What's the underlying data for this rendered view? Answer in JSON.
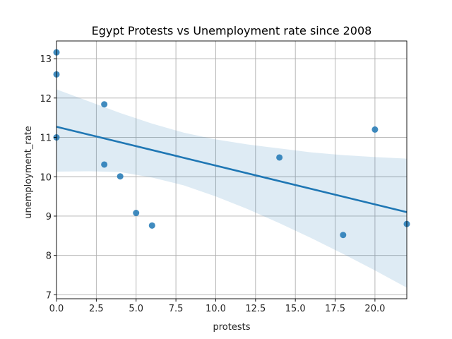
{
  "chart_data": {
    "type": "scatter",
    "title": "Egypt Protests vs Unemployment rate since 2008",
    "xlabel": "protests",
    "ylabel": "unemployment_rate",
    "xlim": [
      0,
      22
    ],
    "ylim": [
      6.9,
      13.45
    ],
    "x_ticks": [
      0.0,
      2.5,
      5.0,
      7.5,
      10.0,
      12.5,
      15.0,
      17.5,
      20.0
    ],
    "x_tick_labels": [
      "0.0",
      "2.5",
      "5.0",
      "7.5",
      "10.0",
      "12.5",
      "15.0",
      "17.5",
      "20.0"
    ],
    "y_ticks": [
      7,
      8,
      9,
      10,
      11,
      12,
      13
    ],
    "y_tick_labels": [
      "7",
      "8",
      "9",
      "10",
      "11",
      "12",
      "13"
    ],
    "grid": true,
    "series": [
      {
        "points": [
          {
            "x": 0,
            "y": 13.16
          },
          {
            "x": 0,
            "y": 12.6
          },
          {
            "x": 0,
            "y": 11.0
          },
          {
            "x": 3,
            "y": 11.84
          },
          {
            "x": 3,
            "y": 10.31
          },
          {
            "x": 4,
            "y": 10.01
          },
          {
            "x": 5,
            "y": 9.08
          },
          {
            "x": 6,
            "y": 8.76
          },
          {
            "x": 14,
            "y": 10.49
          },
          {
            "x": 18,
            "y": 8.52
          },
          {
            "x": 20,
            "y": 11.2
          },
          {
            "x": 22,
            "y": 8.8
          }
        ]
      }
    ],
    "regression": {
      "start": {
        "x": 0,
        "y": 11.27
      },
      "end": {
        "x": 22,
        "y": 9.1
      },
      "ci_upper": [
        {
          "x": 0,
          "y": 12.22
        },
        {
          "x": 2,
          "y": 11.92
        },
        {
          "x": 4,
          "y": 11.62
        },
        {
          "x": 6,
          "y": 11.35
        },
        {
          "x": 8,
          "y": 11.12
        },
        {
          "x": 10,
          "y": 10.95
        },
        {
          "x": 12,
          "y": 10.82
        },
        {
          "x": 14,
          "y": 10.72
        },
        {
          "x": 16,
          "y": 10.62
        },
        {
          "x": 18,
          "y": 10.55
        },
        {
          "x": 20,
          "y": 10.5
        },
        {
          "x": 22,
          "y": 10.46
        }
      ],
      "ci_lower": [
        {
          "x": 0,
          "y": 10.13
        },
        {
          "x": 2,
          "y": 10.14
        },
        {
          "x": 4,
          "y": 10.12
        },
        {
          "x": 6,
          "y": 9.98
        },
        {
          "x": 8,
          "y": 9.78
        },
        {
          "x": 10,
          "y": 9.5
        },
        {
          "x": 12,
          "y": 9.18
        },
        {
          "x": 14,
          "y": 8.82
        },
        {
          "x": 16,
          "y": 8.44
        },
        {
          "x": 18,
          "y": 8.04
        },
        {
          "x": 20,
          "y": 7.62
        },
        {
          "x": 22,
          "y": 7.18
        }
      ]
    },
    "colors": {
      "point": "#1f77b4",
      "line": "#1f77b4",
      "ci_band": "#1f77b4",
      "grid": "#b0b0b0"
    }
  }
}
